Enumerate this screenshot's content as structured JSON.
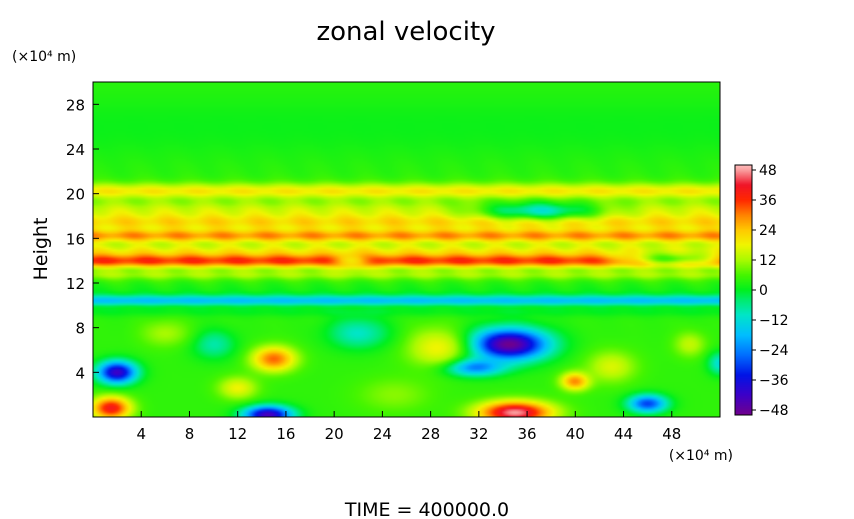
{
  "chart_data": {
    "type": "heatmap",
    "title": "zonal velocity",
    "ylabel": "Height",
    "xlabel": "",
    "x_unit": "(×10⁴ m)",
    "y_unit": "(×10⁴ m)",
    "footer": "TIME = 400000.0",
    "xlim": [
      0,
      52
    ],
    "ylim": [
      0,
      30
    ],
    "x_ticks": [
      4,
      8,
      12,
      16,
      20,
      24,
      28,
      32,
      36,
      40,
      44,
      48
    ],
    "y_ticks": [
      4,
      8,
      12,
      16,
      20,
      24,
      28
    ],
    "colorbar": {
      "range": [
        -50,
        50
      ],
      "ticks": [
        48,
        36,
        24,
        12,
        0,
        -12,
        -24,
        -36,
        -48
      ]
    },
    "background_value": 4,
    "bands": [
      {
        "y": 26.0,
        "sigma": 3.0,
        "value": 1
      },
      {
        "y": 21.0,
        "sigma": 0.5,
        "value": 4
      },
      {
        "y": 20.2,
        "sigma": 0.7,
        "value": 20
      },
      {
        "y": 18.5,
        "sigma": 1.0,
        "value": 14
      },
      {
        "y": 17.5,
        "sigma": 0.8,
        "value": 22
      },
      {
        "y": 16.2,
        "sigma": 0.7,
        "value": 30
      },
      {
        "y": 15.0,
        "sigma": 0.8,
        "value": 16
      },
      {
        "y": 14.0,
        "sigma": 0.7,
        "value": 36
      },
      {
        "y": 12.8,
        "sigma": 0.5,
        "value": 12
      },
      {
        "y": 11.3,
        "sigma": 0.6,
        "value": 2
      },
      {
        "y": 10.4,
        "sigma": 0.5,
        "value": -18
      },
      {
        "y": 9.5,
        "sigma": 0.5,
        "value": 0
      }
    ],
    "blobs": [
      {
        "x": 34.5,
        "y": 6.5,
        "sx": 3.2,
        "sy": 1.4,
        "value": -50
      },
      {
        "x": 31.5,
        "y": 4.5,
        "sx": 2.5,
        "sy": 0.8,
        "value": -28
      },
      {
        "x": 28.5,
        "y": 6.2,
        "sx": 2.5,
        "sy": 1.8,
        "value": 18
      },
      {
        "x": 35.0,
        "y": 0.4,
        "sx": 3.0,
        "sy": 1.0,
        "value": 48
      },
      {
        "x": 2.0,
        "y": 4.0,
        "sx": 1.6,
        "sy": 1.0,
        "value": -42
      },
      {
        "x": 1.5,
        "y": 0.8,
        "sx": 1.6,
        "sy": 1.0,
        "value": 40
      },
      {
        "x": 14.5,
        "y": 0.2,
        "sx": 2.0,
        "sy": 0.8,
        "value": -44
      },
      {
        "x": 15.0,
        "y": 5.2,
        "sx": 1.8,
        "sy": 1.1,
        "value": 32
      },
      {
        "x": 12.0,
        "y": 2.6,
        "sx": 1.6,
        "sy": 1.0,
        "value": 18
      },
      {
        "x": 10.0,
        "y": 6.5,
        "sx": 1.8,
        "sy": 1.3,
        "value": -8
      },
      {
        "x": 6.0,
        "y": 7.5,
        "sx": 2.0,
        "sy": 1.2,
        "value": 12
      },
      {
        "x": 22.0,
        "y": 7.5,
        "sx": 2.5,
        "sy": 1.4,
        "value": -10
      },
      {
        "x": 25.0,
        "y": 2.0,
        "sx": 3.0,
        "sy": 1.5,
        "value": 10
      },
      {
        "x": 40.0,
        "y": 3.2,
        "sx": 1.2,
        "sy": 0.8,
        "value": 30
      },
      {
        "x": 43.0,
        "y": 4.5,
        "sx": 2.0,
        "sy": 1.4,
        "value": 16
      },
      {
        "x": 46.0,
        "y": 1.2,
        "sx": 1.6,
        "sy": 0.8,
        "value": -30
      },
      {
        "x": 49.5,
        "y": 6.5,
        "sx": 1.3,
        "sy": 1.1,
        "value": 14
      },
      {
        "x": 52.0,
        "y": 4.8,
        "sx": 1.0,
        "sy": 1.0,
        "value": -12
      },
      {
        "x": 21.5,
        "y": 14.0,
        "sx": 1.6,
        "sy": 0.8,
        "value": 22
      },
      {
        "x": 37.0,
        "y": 18.5,
        "sx": 5.0,
        "sy": 0.8,
        "value": -10
      },
      {
        "x": 48.0,
        "y": 14.2,
        "sx": 4.0,
        "sy": 0.7,
        "value": 6
      }
    ]
  }
}
